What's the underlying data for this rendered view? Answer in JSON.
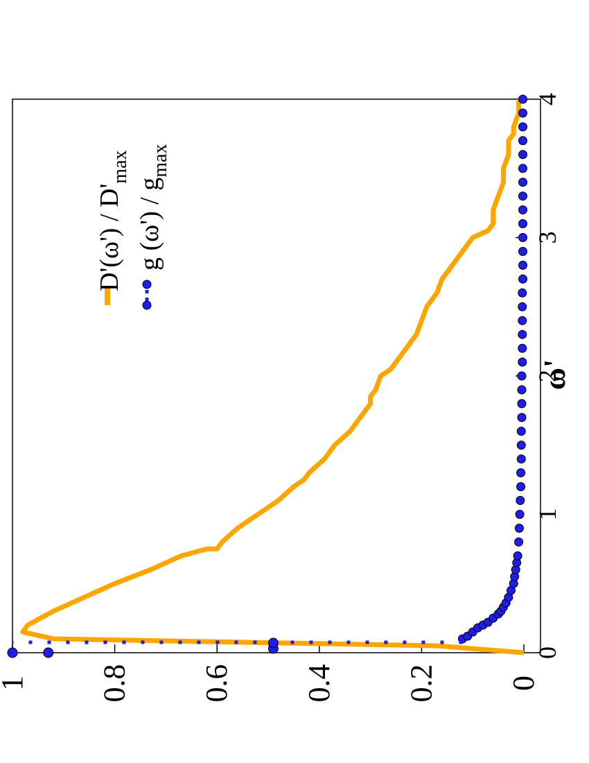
{
  "chart_data": {
    "type": "line",
    "xlabel": "ω'",
    "ylabel": "",
    "xlim": [
      0,
      4
    ],
    "ylim": [
      0,
      1
    ],
    "x_ticks": [
      "0",
      "1",
      "2",
      "3",
      "4"
    ],
    "y_ticks": [
      "0",
      "0.2",
      "0.4",
      "0.6",
      "0.8",
      "1"
    ],
    "legend": {
      "placement": "top-right",
      "entries": [
        {
          "label_main": "D'(ω') / D'",
          "label_sub": "max"
        },
        {
          "label_main": "g (ω') / g",
          "label_sub": "max"
        }
      ]
    },
    "series": [
      {
        "name": "D'(ω') / D'max",
        "style": "line",
        "color": "#FFA500",
        "x": [
          0,
          0.05,
          0.1,
          0.15,
          0.2,
          0.3,
          0.4,
          0.5,
          0.6,
          0.7,
          0.75,
          0.75,
          0.8,
          0.9,
          1.0,
          1.1,
          1.2,
          1.25,
          1.3,
          1.4,
          1.5,
          1.6,
          1.7,
          1.8,
          1.85,
          1.9,
          2.0,
          2.05,
          2.1,
          2.2,
          2.3,
          2.4,
          2.5,
          2.6,
          2.7,
          2.75,
          2.8,
          2.9,
          3.0,
          3.05,
          3.1,
          3.2,
          3.3,
          3.4,
          3.5,
          3.6,
          3.7,
          3.75,
          3.8,
          3.9,
          4.0
        ],
        "y": [
          0,
          0.17,
          0.92,
          0.98,
          0.97,
          0.92,
          0.86,
          0.8,
          0.73,
          0.67,
          0.62,
          0.6,
          0.59,
          0.56,
          0.52,
          0.48,
          0.45,
          0.43,
          0.42,
          0.39,
          0.37,
          0.34,
          0.32,
          0.3,
          0.3,
          0.29,
          0.28,
          0.26,
          0.25,
          0.23,
          0.21,
          0.2,
          0.19,
          0.17,
          0.16,
          0.15,
          0.14,
          0.12,
          0.1,
          0.07,
          0.06,
          0.06,
          0.05,
          0.04,
          0.04,
          0.03,
          0.03,
          0.02,
          0.02,
          0.01,
          0.01
        ]
      },
      {
        "name": "g (ω') / gmax",
        "style": "points",
        "color": "#1E1EE6",
        "x": [
          0.0,
          0.0,
          0.03,
          0.07,
          0.1,
          0.12,
          0.15,
          0.18,
          0.2,
          0.22,
          0.25,
          0.28,
          0.3,
          0.33,
          0.36,
          0.4,
          0.45,
          0.5,
          0.55,
          0.6,
          0.65,
          0.7,
          0.8,
          0.9,
          1.0,
          1.1,
          1.2,
          1.3,
          1.4,
          1.5,
          1.6,
          1.7,
          1.8,
          1.9,
          2.0,
          2.1,
          2.2,
          2.3,
          2.4,
          2.5,
          2.6,
          2.7,
          2.8,
          2.9,
          3.0,
          3.1,
          3.2,
          3.3,
          3.4,
          3.5,
          3.6,
          3.7,
          3.8,
          3.9,
          4.0
        ],
        "y": [
          1.0,
          0.93,
          0.49,
          0.49,
          0.12,
          0.11,
          0.1,
          0.09,
          0.08,
          0.07,
          0.06,
          0.05,
          0.045,
          0.04,
          0.035,
          0.03,
          0.025,
          0.02,
          0.018,
          0.016,
          0.014,
          0.012,
          0.01,
          0.009,
          0.008,
          0.007,
          0.006,
          0.006,
          0.005,
          0.005,
          0.005,
          0.004,
          0.004,
          0.004,
          0.004,
          0.003,
          0.003,
          0.003,
          0.003,
          0.003,
          0.003,
          0.002,
          0.002,
          0.002,
          0.002,
          0.002,
          0.002,
          0.002,
          0.002,
          0.002,
          0.002,
          0.002,
          0.002,
          0.002,
          0.002
        ]
      }
    ]
  }
}
